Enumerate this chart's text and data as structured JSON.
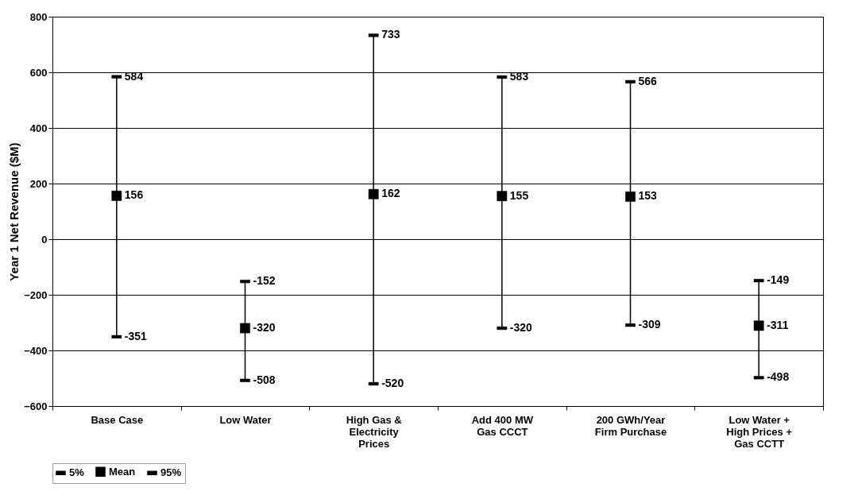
{
  "chart_data": {
    "type": "scatter",
    "ylabel": "Year 1 Net Revenue ($M)",
    "categories": [
      "Base Case",
      "Low Water",
      "High Gas & Electricity Prices",
      "Add 400 MW Gas CCCT",
      "200 GWh/Year Firm Purchase",
      "Low Water + High Prices + Gas CCTT"
    ],
    "series": [
      {
        "name": "5%",
        "color": "#000000",
        "values": [
          -351,
          -508,
          -520,
          -320,
          -309,
          -498
        ]
      },
      {
        "name": "Mean",
        "color": "#000000",
        "marker": "square",
        "values": [
          156,
          -320,
          162,
          155,
          153,
          -311
        ]
      },
      {
        "name": "95%",
        "color": "#000000",
        "values": [
          584,
          -152,
          733,
          583,
          566,
          -149
        ]
      }
    ],
    "ylim": [
      -600,
      800
    ],
    "yticks": [
      -600,
      -400,
      -200,
      0,
      200,
      400,
      600,
      800
    ],
    "grid": "y",
    "legend": "bottom",
    "data_labels": true
  }
}
